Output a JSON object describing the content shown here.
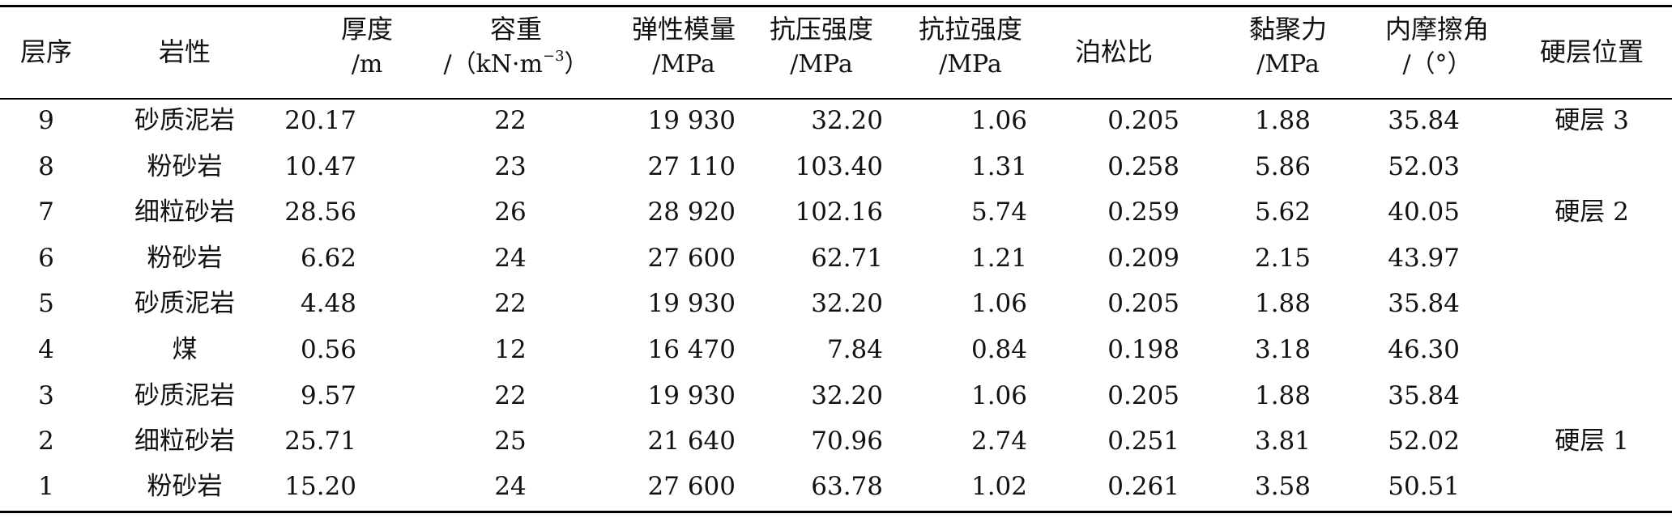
{
  "table": {
    "headers": [
      {
        "line1": "层序",
        "line2": ""
      },
      {
        "line1": "岩性",
        "line2": ""
      },
      {
        "line1": "厚度",
        "line2": "/m"
      },
      {
        "line1": "容重",
        "line2": "/（kN·m",
        "sup": "−3",
        "tail": "）"
      },
      {
        "line1": "弹性模量",
        "line2": "/MPa"
      },
      {
        "line1": "抗压强度",
        "line2": "/MPa"
      },
      {
        "line1": "抗拉强度",
        "line2": "/MPa"
      },
      {
        "line1": "泊松比",
        "line2": ""
      },
      {
        "line1": "黏聚力",
        "line2": "/MPa"
      },
      {
        "line1": "内摩擦角",
        "line2": "/（°）"
      },
      {
        "line1": "硬层位置",
        "line2": ""
      }
    ],
    "rows": [
      [
        "9",
        "砂质泥岩",
        "20.17",
        "22",
        "19 930",
        "32.20",
        "1.06",
        "0.205",
        "1.88",
        "35.84",
        "硬层 3"
      ],
      [
        "8",
        "粉砂岩",
        "10.47",
        "23",
        "27 110",
        "103.40",
        "1.31",
        "0.258",
        "5.86",
        "52.03",
        ""
      ],
      [
        "7",
        "细粒砂岩",
        "28.56",
        "26",
        "28 920",
        "102.16",
        "5.74",
        "0.259",
        "5.62",
        "40.05",
        "硬层 2"
      ],
      [
        "6",
        "粉砂岩",
        "6.62",
        "24",
        "27 600",
        "62.71",
        "1.21",
        "0.209",
        "2.15",
        "43.97",
        ""
      ],
      [
        "5",
        "砂质泥岩",
        "4.48",
        "22",
        "19 930",
        "32.20",
        "1.06",
        "0.205",
        "1.88",
        "35.84",
        ""
      ],
      [
        "4",
        "煤",
        "0.56",
        "12",
        "16 470",
        "7.84",
        "0.84",
        "0.198",
        "3.18",
        "46.30",
        ""
      ],
      [
        "3",
        "砂质泥岩",
        "9.57",
        "22",
        "19 930",
        "32.20",
        "1.06",
        "0.205",
        "1.88",
        "35.84",
        ""
      ],
      [
        "2",
        "细粒砂岩",
        "25.71",
        "25",
        "21 640",
        "70.96",
        "2.74",
        "0.251",
        "3.81",
        "52.02",
        "硬层 1"
      ],
      [
        "1",
        "粉砂岩",
        "15.20",
        "24",
        "27 600",
        "63.78",
        "1.02",
        "0.261",
        "3.58",
        "50.51",
        ""
      ]
    ]
  }
}
